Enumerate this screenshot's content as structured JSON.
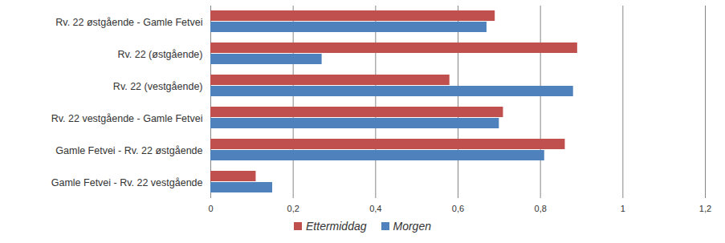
{
  "chart_data": {
    "type": "bar",
    "orientation": "horizontal",
    "categories": [
      "Rv. 22 østgående - Gamle Fetvei",
      "Rv. 22 (østgående)",
      "Rv. 22 (vestgående)",
      "Rv. 22 vestgående - Gamle Fetvei",
      "Gamle Fetvei - Rv. 22 østgående",
      "Gamle Fetvei - Rv. 22 vestgående"
    ],
    "series": [
      {
        "name": "Ettermiddag",
        "color": "#c0504d",
        "values": [
          0.69,
          0.89,
          0.58,
          0.71,
          0.86,
          0.11
        ]
      },
      {
        "name": "Morgen",
        "color": "#4f81bd",
        "values": [
          0.67,
          0.27,
          0.88,
          0.7,
          0.81,
          0.15
        ]
      }
    ],
    "xlim": [
      0,
      1.2
    ],
    "xticks": [
      0,
      {
        "value": 0.2,
        "label": "0,2"
      },
      {
        "value": 0.4,
        "label": "0,4"
      },
      {
        "value": 0.6,
        "label": "0,6"
      },
      {
        "value": 0.8,
        "label": "0,8"
      },
      1,
      {
        "value": 1.2,
        "label": "1,2"
      }
    ],
    "grid": true,
    "legend": "bottom"
  }
}
